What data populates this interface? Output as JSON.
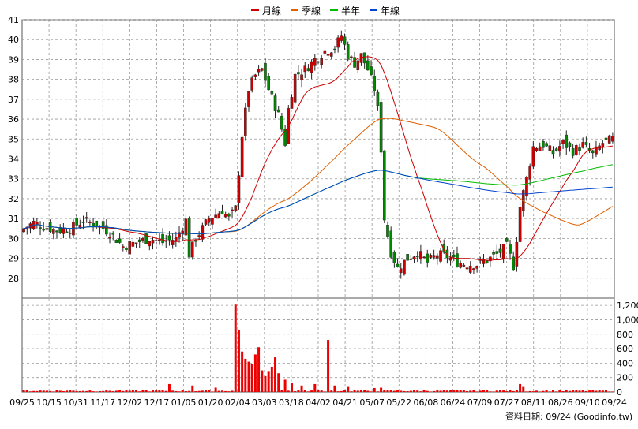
{
  "chart_data": {
    "type": "candlestick",
    "legend": {
      "placement": "top-center",
      "items": [
        {
          "name": "月線",
          "color": "#cc0000"
        },
        {
          "name": "季線",
          "color": "#e06000"
        },
        {
          "name": "半年",
          "color": "#00bb00"
        },
        {
          "name": "年線",
          "color": "#0044cc"
        }
      ]
    },
    "price_axis": {
      "position": "left",
      "range": [
        27,
        41
      ],
      "ticks": [
        28,
        29,
        30,
        31,
        32,
        33,
        34,
        35,
        36,
        37,
        38,
        39,
        40,
        41
      ],
      "grid": true
    },
    "volume_axis": {
      "position": "right",
      "range": [
        0,
        1300
      ],
      "ticks": [
        0,
        200,
        400,
        600,
        800,
        1000,
        1200
      ],
      "tick_labels": [
        "0",
        "200",
        "400",
        "600",
        "800",
        "1,000",
        "1,200"
      ],
      "grid": true
    },
    "date_ticks": [
      "09/25",
      "10/15",
      "10/31",
      "11/17",
      "12/02",
      "12/17",
      "01/05",
      "01/20",
      "02/04",
      "03/03",
      "03/18",
      "04/02",
      "04/21",
      "05/07",
      "05/22",
      "06/08",
      "06/24",
      "07/09",
      "07/27",
      "08/11",
      "08/26",
      "09/10",
      "09/24"
    ],
    "price_keypoints": [
      [
        0,
        30.5
      ],
      [
        3,
        30.8
      ],
      [
        6,
        30.6
      ],
      [
        10,
        30.4
      ],
      [
        14,
        30.5
      ],
      [
        18,
        30.9
      ],
      [
        22,
        30.7
      ],
      [
        26,
        30.3
      ],
      [
        30,
        29.6
      ],
      [
        34,
        29.8
      ],
      [
        38,
        30.0
      ],
      [
        42,
        29.8
      ],
      [
        46,
        30.0
      ],
      [
        49,
        30.9
      ],
      [
        50,
        29.2
      ],
      [
        52,
        30.0
      ],
      [
        56,
        31.0
      ],
      [
        60,
        31.4
      ],
      [
        62,
        31.0
      ],
      [
        64,
        31.5
      ],
      [
        66,
        35.2
      ],
      [
        68,
        37.5
      ],
      [
        70,
        38.2
      ],
      [
        72,
        38.5
      ],
      [
        74,
        37.5
      ],
      [
        77,
        36.2
      ],
      [
        79,
        34.8
      ],
      [
        80,
        36.5
      ],
      [
        82,
        38.2
      ],
      [
        85,
        38.5
      ],
      [
        88,
        39.0
      ],
      [
        91,
        39.4
      ],
      [
        94,
        39.6
      ],
      [
        96,
        40.2
      ],
      [
        98,
        39.2
      ],
      [
        100,
        38.8
      ],
      [
        102,
        39.2
      ],
      [
        104,
        38.5
      ],
      [
        106,
        37.5
      ],
      [
        107,
        36.5
      ],
      [
        108,
        34.5
      ],
      [
        109,
        31.0
      ],
      [
        111,
        29.3
      ],
      [
        113,
        28.5
      ],
      [
        116,
        29.0
      ],
      [
        119,
        29.3
      ],
      [
        122,
        28.8
      ],
      [
        125,
        29.2
      ],
      [
        128,
        29.1
      ],
      [
        131,
        28.8
      ],
      [
        134,
        28.7
      ],
      [
        137,
        28.7
      ],
      [
        140,
        28.9
      ],
      [
        143,
        29.2
      ],
      [
        146,
        29.6
      ],
      [
        148,
        28.6
      ],
      [
        149,
        30.0
      ],
      [
        150,
        31.6
      ],
      [
        152,
        33.0
      ],
      [
        154,
        34.6
      ],
      [
        157,
        34.7
      ],
      [
        160,
        34.3
      ],
      [
        163,
        34.8
      ],
      [
        166,
        34.4
      ],
      [
        169,
        34.7
      ],
      [
        172,
        34.2
      ],
      [
        175,
        34.8
      ],
      [
        178,
        35.0
      ]
    ],
    "volume_spikes": [
      [
        44,
        110
      ],
      [
        51,
        90
      ],
      [
        58,
        60
      ],
      [
        64,
        1210
      ],
      [
        65,
        860
      ],
      [
        66,
        560
      ],
      [
        67,
        460
      ],
      [
        68,
        420
      ],
      [
        69,
        390
      ],
      [
        70,
        520
      ],
      [
        71,
        620
      ],
      [
        72,
        300
      ],
      [
        73,
        220
      ],
      [
        74,
        280
      ],
      [
        75,
        350
      ],
      [
        76,
        480
      ],
      [
        77,
        260
      ],
      [
        79,
        170
      ],
      [
        81,
        120
      ],
      [
        84,
        90
      ],
      [
        88,
        110
      ],
      [
        92,
        720
      ],
      [
        94,
        90
      ],
      [
        98,
        70
      ],
      [
        106,
        55
      ],
      [
        108,
        60
      ],
      [
        150,
        110
      ],
      [
        151,
        70
      ]
    ],
    "volume_base": 20
  },
  "footer": {
    "text": "資料日期: 09/24  (Goodinfo.tw)"
  }
}
